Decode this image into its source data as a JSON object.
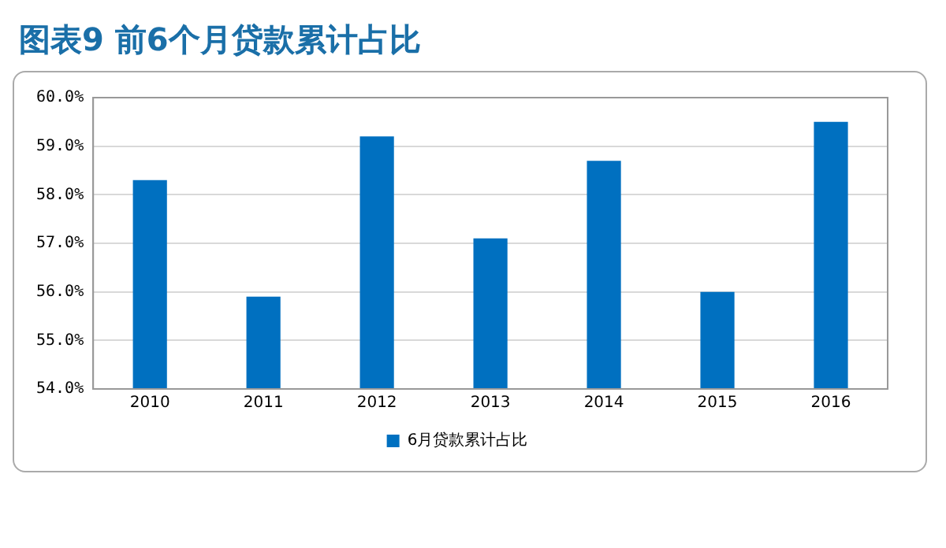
{
  "chart_data": {
    "type": "bar",
    "title": "图表9  前6个月贷款累计占比",
    "categories": [
      "2010",
      "2011",
      "2012",
      "2013",
      "2014",
      "2015",
      "2016"
    ],
    "series": [
      {
        "name": "6月贷款累计占比",
        "color": "#0070c0",
        "values": [
          58.3,
          55.9,
          59.2,
          57.1,
          58.7,
          56.0,
          59.5
        ]
      }
    ],
    "ylim": [
      54,
      60
    ],
    "yticks": [
      {
        "value": 54,
        "label": "54.0%"
      },
      {
        "value": 55,
        "label": "55.0%"
      },
      {
        "value": 56,
        "label": "56.0%"
      },
      {
        "value": 57,
        "label": "57.0%"
      },
      {
        "value": 58,
        "label": "58.0%"
      },
      {
        "value": 59,
        "label": "59.0%"
      },
      {
        "value": 60,
        "label": "60.0%"
      }
    ],
    "grid": "y",
    "legend": "bottom"
  }
}
